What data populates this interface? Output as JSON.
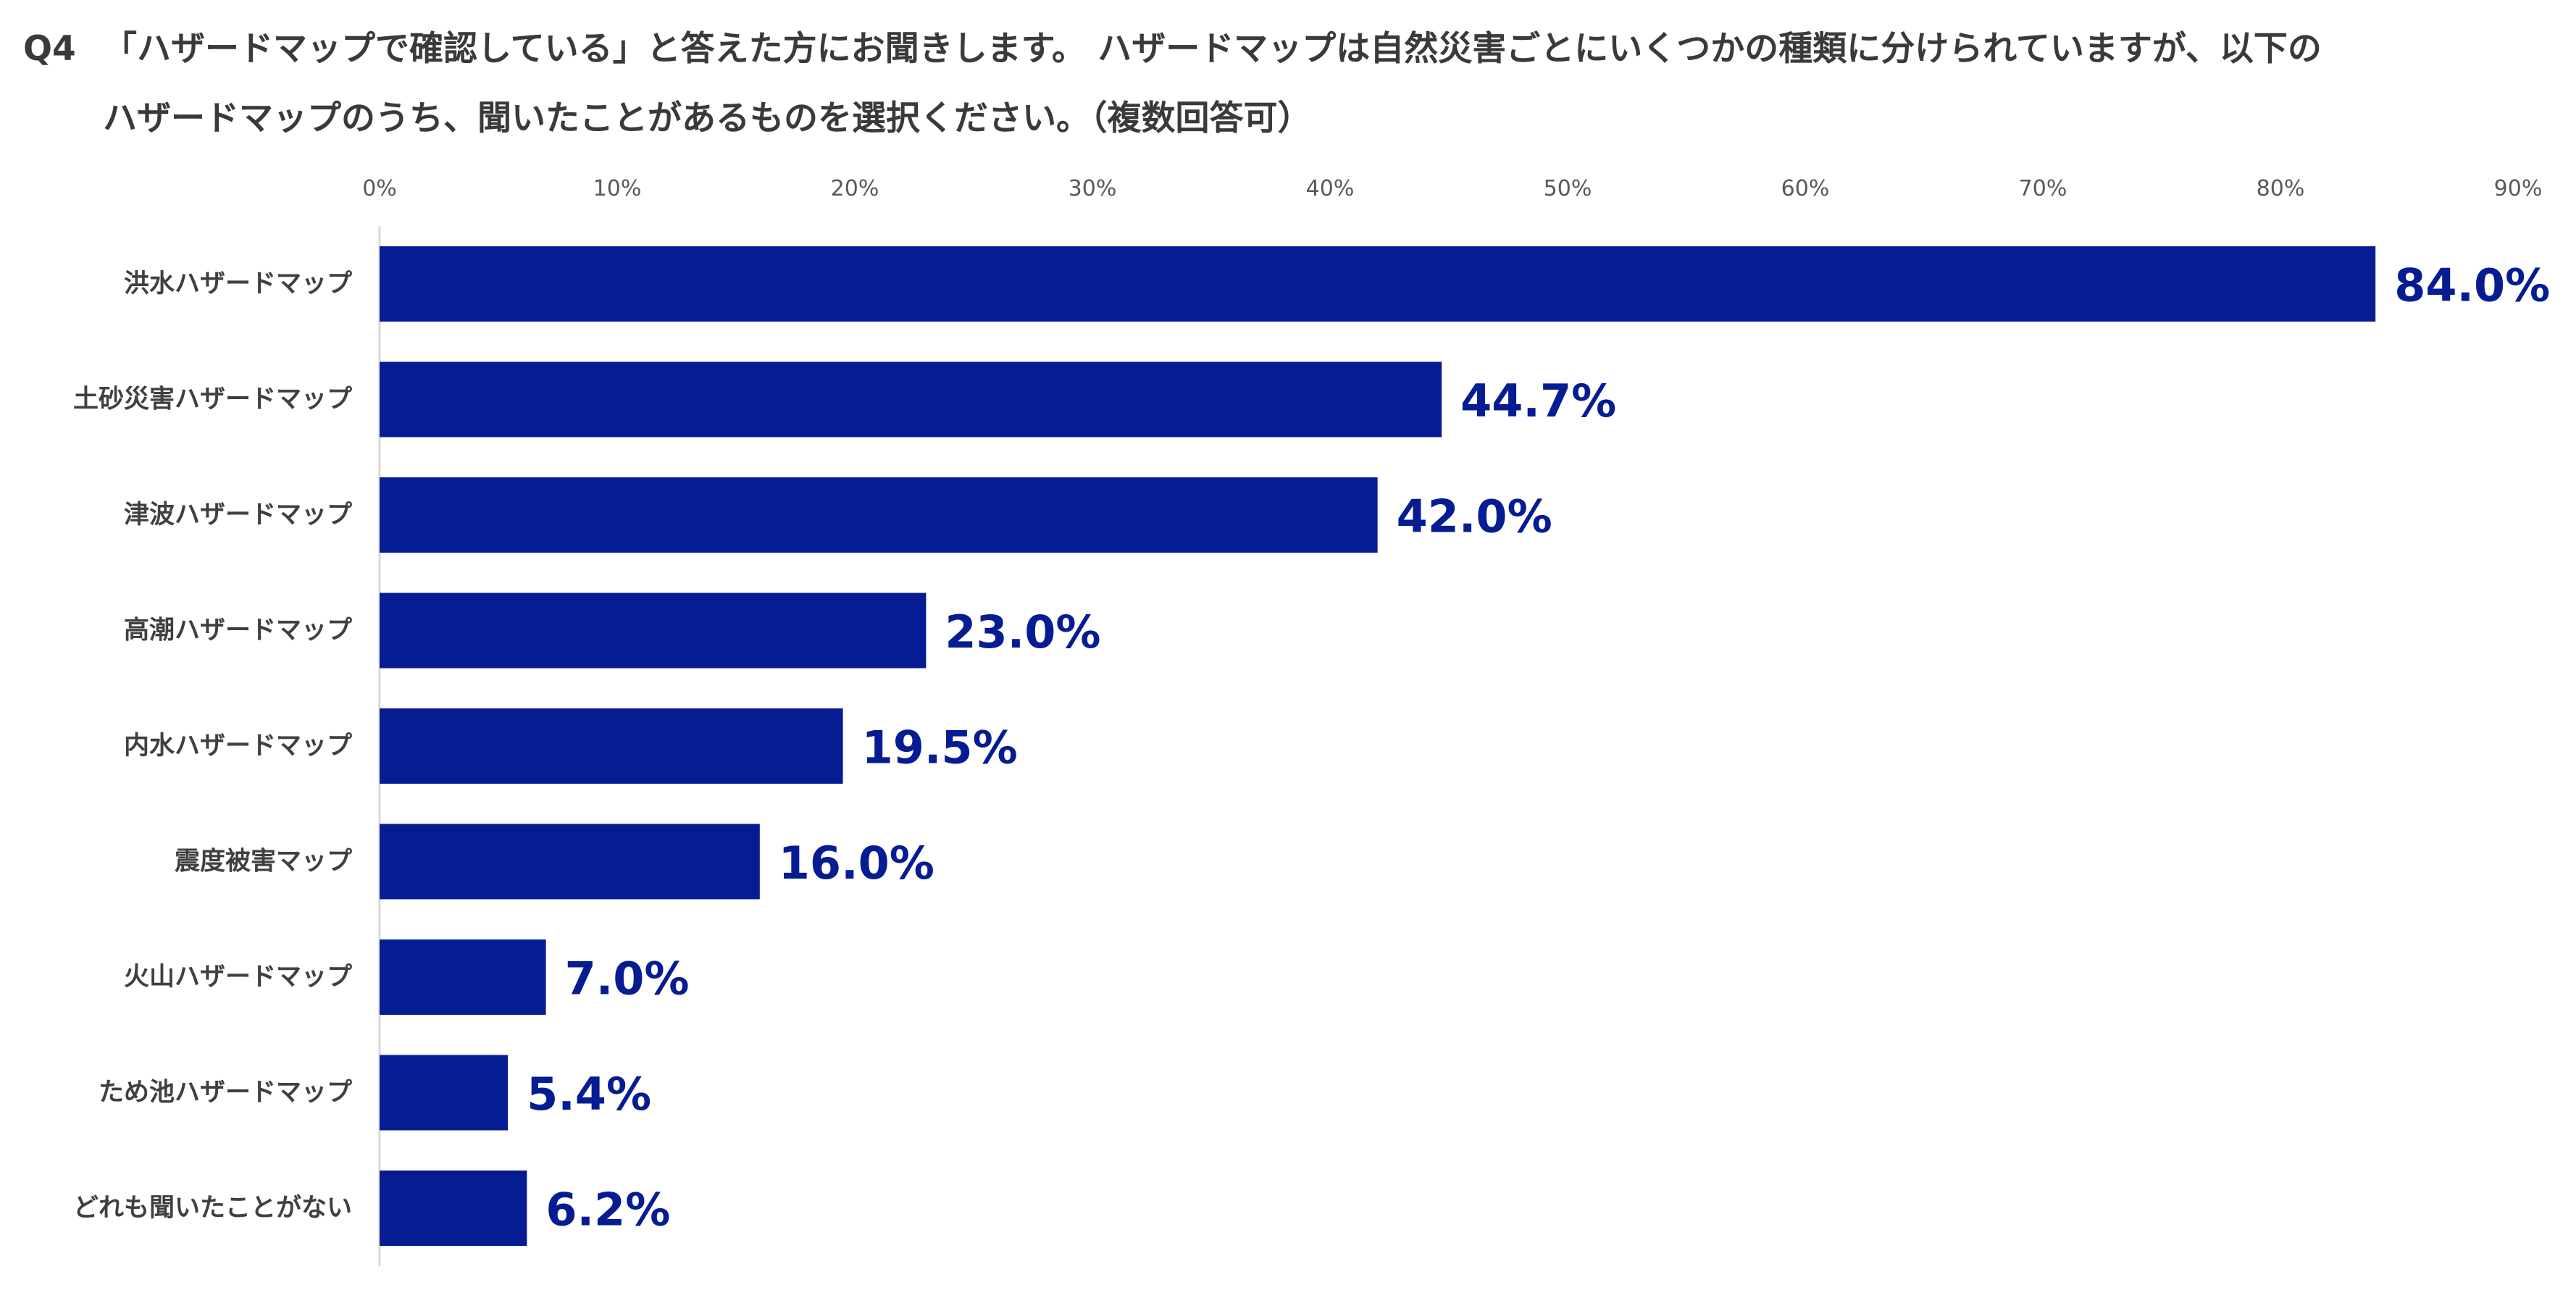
{
  "question": {
    "number": "Q4",
    "line1": "「ハザードマップで確認している」と答えた方にお聞きします。 ハザードマップは自然災害ごとにいくつかの種類に分けられていますが、以下の",
    "line2": "ハザードマップのうち、聞いたことがあるものを選択ください。（複数回答可）"
  },
  "chart_data": {
    "type": "bar",
    "orientation": "horizontal",
    "categories": [
      "洪水ハザードマップ",
      "土砂災害ハザードマップ",
      "津波ハザードマップ",
      "高潮ハザードマップ",
      "内水ハザードマップ",
      "震度被害マップ",
      "火山ハザードマップ",
      "ため池ハザードマップ",
      "どれも聞いたことがない"
    ],
    "values": [
      84.0,
      44.7,
      42.0,
      23.0,
      19.5,
      16.0,
      7.0,
      5.4,
      6.2
    ],
    "data_labels": [
      "84.0%",
      "44.7%",
      "42.0%",
      "23.0%",
      "19.5%",
      "16.0%",
      "7.0%",
      "5.4%",
      "6.2%"
    ],
    "xlim": [
      0,
      90
    ],
    "x_ticks": [
      0,
      10,
      20,
      30,
      40,
      50,
      60,
      70,
      80,
      90
    ],
    "x_tick_labels": [
      "0%",
      "10%",
      "20%",
      "30%",
      "40%",
      "50%",
      "60%",
      "70%",
      "80%",
      "90%"
    ],
    "x_axis_position": "top",
    "grid": false,
    "legend": "none",
    "colors": {
      "bar": "#061C92",
      "data_label": "#061C92",
      "axis_line": "#D9D9D9"
    }
  }
}
